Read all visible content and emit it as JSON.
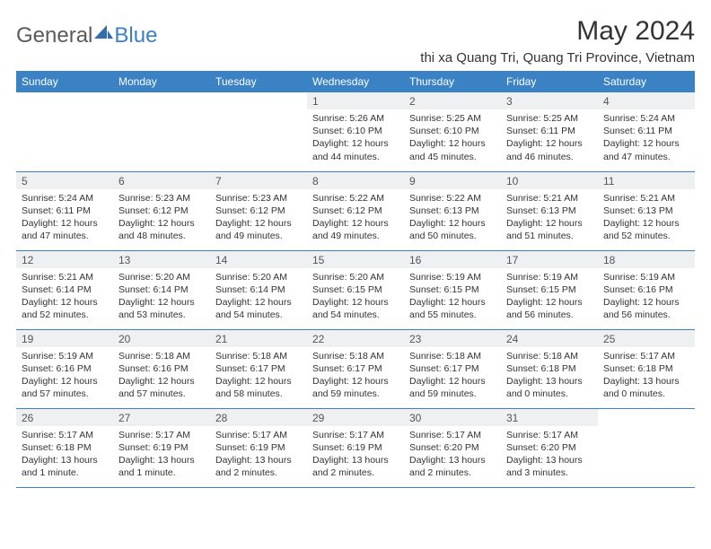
{
  "logo": {
    "text1": "General",
    "text2": "Blue"
  },
  "title": "May 2024",
  "location": "thi xa Quang Tri, Quang Tri Province, Vietnam",
  "colors": {
    "header_bg": "#3b82c4",
    "header_text": "#ffffff",
    "daynum_bg": "#eef0f2",
    "daynum_text": "#555555",
    "cell_text": "#333333",
    "border": "#3b82c4",
    "logo_gray": "#5a5a5a",
    "logo_blue": "#3b7fc4"
  },
  "typography": {
    "title_fontsize": 30,
    "location_fontsize": 15,
    "header_fontsize": 12,
    "daynum_fontsize": 12,
    "cell_fontsize": 10.5
  },
  "days_of_week": [
    "Sunday",
    "Monday",
    "Tuesday",
    "Wednesday",
    "Thursday",
    "Friday",
    "Saturday"
  ],
  "weeks": [
    [
      null,
      null,
      null,
      {
        "n": "1",
        "sunrise": "5:26 AM",
        "sunset": "6:10 PM",
        "daylight": "12 hours and 44 minutes."
      },
      {
        "n": "2",
        "sunrise": "5:25 AM",
        "sunset": "6:10 PM",
        "daylight": "12 hours and 45 minutes."
      },
      {
        "n": "3",
        "sunrise": "5:25 AM",
        "sunset": "6:11 PM",
        "daylight": "12 hours and 46 minutes."
      },
      {
        "n": "4",
        "sunrise": "5:24 AM",
        "sunset": "6:11 PM",
        "daylight": "12 hours and 47 minutes."
      }
    ],
    [
      {
        "n": "5",
        "sunrise": "5:24 AM",
        "sunset": "6:11 PM",
        "daylight": "12 hours and 47 minutes."
      },
      {
        "n": "6",
        "sunrise": "5:23 AM",
        "sunset": "6:12 PM",
        "daylight": "12 hours and 48 minutes."
      },
      {
        "n": "7",
        "sunrise": "5:23 AM",
        "sunset": "6:12 PM",
        "daylight": "12 hours and 49 minutes."
      },
      {
        "n": "8",
        "sunrise": "5:22 AM",
        "sunset": "6:12 PM",
        "daylight": "12 hours and 49 minutes."
      },
      {
        "n": "9",
        "sunrise": "5:22 AM",
        "sunset": "6:13 PM",
        "daylight": "12 hours and 50 minutes."
      },
      {
        "n": "10",
        "sunrise": "5:21 AM",
        "sunset": "6:13 PM",
        "daylight": "12 hours and 51 minutes."
      },
      {
        "n": "11",
        "sunrise": "5:21 AM",
        "sunset": "6:13 PM",
        "daylight": "12 hours and 52 minutes."
      }
    ],
    [
      {
        "n": "12",
        "sunrise": "5:21 AM",
        "sunset": "6:14 PM",
        "daylight": "12 hours and 52 minutes."
      },
      {
        "n": "13",
        "sunrise": "5:20 AM",
        "sunset": "6:14 PM",
        "daylight": "12 hours and 53 minutes."
      },
      {
        "n": "14",
        "sunrise": "5:20 AM",
        "sunset": "6:14 PM",
        "daylight": "12 hours and 54 minutes."
      },
      {
        "n": "15",
        "sunrise": "5:20 AM",
        "sunset": "6:15 PM",
        "daylight": "12 hours and 54 minutes."
      },
      {
        "n": "16",
        "sunrise": "5:19 AM",
        "sunset": "6:15 PM",
        "daylight": "12 hours and 55 minutes."
      },
      {
        "n": "17",
        "sunrise": "5:19 AM",
        "sunset": "6:15 PM",
        "daylight": "12 hours and 56 minutes."
      },
      {
        "n": "18",
        "sunrise": "5:19 AM",
        "sunset": "6:16 PM",
        "daylight": "12 hours and 56 minutes."
      }
    ],
    [
      {
        "n": "19",
        "sunrise": "5:19 AM",
        "sunset": "6:16 PM",
        "daylight": "12 hours and 57 minutes."
      },
      {
        "n": "20",
        "sunrise": "5:18 AM",
        "sunset": "6:16 PM",
        "daylight": "12 hours and 57 minutes."
      },
      {
        "n": "21",
        "sunrise": "5:18 AM",
        "sunset": "6:17 PM",
        "daylight": "12 hours and 58 minutes."
      },
      {
        "n": "22",
        "sunrise": "5:18 AM",
        "sunset": "6:17 PM",
        "daylight": "12 hours and 59 minutes."
      },
      {
        "n": "23",
        "sunrise": "5:18 AM",
        "sunset": "6:17 PM",
        "daylight": "12 hours and 59 minutes."
      },
      {
        "n": "24",
        "sunrise": "5:18 AM",
        "sunset": "6:18 PM",
        "daylight": "13 hours and 0 minutes."
      },
      {
        "n": "25",
        "sunrise": "5:17 AM",
        "sunset": "6:18 PM",
        "daylight": "13 hours and 0 minutes."
      }
    ],
    [
      {
        "n": "26",
        "sunrise": "5:17 AM",
        "sunset": "6:18 PM",
        "daylight": "13 hours and 1 minute."
      },
      {
        "n": "27",
        "sunrise": "5:17 AM",
        "sunset": "6:19 PM",
        "daylight": "13 hours and 1 minute."
      },
      {
        "n": "28",
        "sunrise": "5:17 AM",
        "sunset": "6:19 PM",
        "daylight": "13 hours and 2 minutes."
      },
      {
        "n": "29",
        "sunrise": "5:17 AM",
        "sunset": "6:19 PM",
        "daylight": "13 hours and 2 minutes."
      },
      {
        "n": "30",
        "sunrise": "5:17 AM",
        "sunset": "6:20 PM",
        "daylight": "13 hours and 2 minutes."
      },
      {
        "n": "31",
        "sunrise": "5:17 AM",
        "sunset": "6:20 PM",
        "daylight": "13 hours and 3 minutes."
      },
      null
    ]
  ],
  "labels": {
    "sunrise": "Sunrise: ",
    "sunset": "Sunset: ",
    "daylight": "Daylight: "
  }
}
